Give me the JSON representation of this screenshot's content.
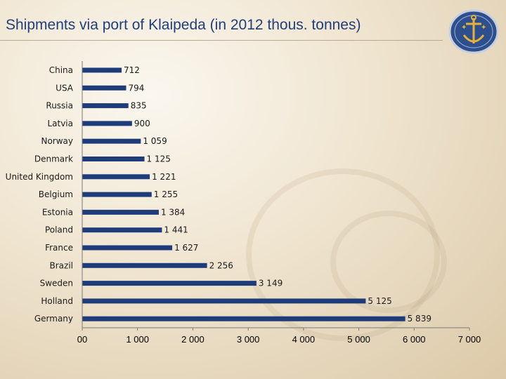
{
  "slide": {
    "title": "Shipments via port of Klaipeda (in 2012 thous. tonnes)"
  },
  "logo": {
    "icon": "anchor-emblem-icon"
  },
  "colors": {
    "bar": "#1f3c7a",
    "title": "#1f3f7a"
  },
  "chart_data": {
    "type": "bar",
    "orientation": "horizontal",
    "title": "",
    "xlabel": "",
    "ylabel": "",
    "categories": [
      "China",
      "USA",
      "Russia",
      "Latvia",
      "Norway",
      "Denmark",
      "United Kingdom",
      "Belgium",
      "Estonia",
      "Poland",
      "France",
      "Brazil",
      "Sweden",
      "Holland",
      "Germany"
    ],
    "values": [
      712,
      794,
      835,
      900,
      1059,
      1125,
      1221,
      1255,
      1384,
      1441,
      1627,
      2256,
      3149,
      5125,
      5839
    ],
    "value_labels": [
      "712",
      "794",
      "835",
      "900",
      "1 059",
      "1 125",
      "1 221",
      "1 255",
      "1 384",
      "1 441",
      "1 627",
      "2 256",
      "3 149",
      "5 125",
      "5 839"
    ],
    "xlim": [
      0,
      7000
    ],
    "x_ticks": [
      0,
      1000,
      2000,
      3000,
      4000,
      5000,
      6000,
      7000
    ],
    "x_tick_labels": [
      "00",
      "1 000",
      "2 000",
      "3 000",
      "4 000",
      "5 000",
      "6 000",
      "7 000"
    ],
    "grid": false,
    "legend": "none"
  }
}
